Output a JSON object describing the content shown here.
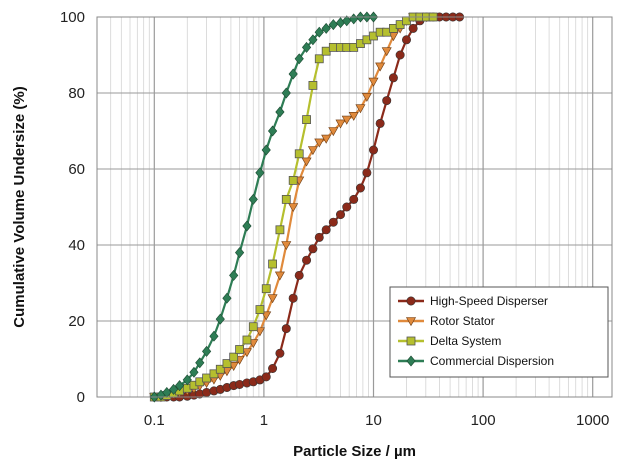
{
  "chart_data": {
    "type": "line",
    "xlabel": "Particle Size / µm",
    "ylabel": "Cumulative Volume Undersize (%)",
    "xscale": "log",
    "xlim": [
      0.03,
      1500
    ],
    "ylim": [
      0,
      100
    ],
    "xticks": [
      "0.1",
      "1",
      "10",
      "100",
      "1000"
    ],
    "yticks": [
      "0",
      "20",
      "40",
      "60",
      "80",
      "100"
    ],
    "grid": true,
    "legend_position": "bottom-right",
    "series": [
      {
        "name": "High-Speed Disperser",
        "color": "#8b2a1a",
        "marker": "circle",
        "x": [
          0.1,
          0.115,
          0.13,
          0.15,
          0.17,
          0.2,
          0.23,
          0.26,
          0.3,
          0.35,
          0.4,
          0.46,
          0.53,
          0.6,
          0.7,
          0.8,
          0.92,
          1.05,
          1.2,
          1.4,
          1.6,
          1.85,
          2.1,
          2.45,
          2.8,
          3.2,
          3.7,
          4.3,
          5,
          5.7,
          6.6,
          7.6,
          8.7,
          10,
          11.5,
          13.2,
          15.2,
          17.5,
          20,
          23,
          26.5,
          30.5,
          35,
          40,
          46,
          53,
          61
        ],
        "y": [
          0,
          0,
          0,
          0,
          0,
          0.2,
          0.5,
          0.8,
          1.2,
          1.6,
          2,
          2.5,
          3,
          3.3,
          3.7,
          4,
          4.5,
          5.3,
          7.5,
          11.5,
          18,
          26,
          32,
          36,
          39,
          42,
          44,
          46,
          48,
          50,
          52,
          55,
          59,
          65,
          72,
          78,
          84,
          90,
          94,
          97,
          99,
          100,
          100,
          100,
          100,
          100,
          100
        ]
      },
      {
        "name": "Rotor Stator",
        "color": "#e08a3c",
        "marker": "triangle-down",
        "x": [
          0.1,
          0.115,
          0.13,
          0.15,
          0.17,
          0.2,
          0.23,
          0.26,
          0.3,
          0.35,
          0.4,
          0.46,
          0.53,
          0.6,
          0.7,
          0.8,
          0.92,
          1.05,
          1.2,
          1.4,
          1.6,
          1.85,
          2.1,
          2.45,
          2.8,
          3.2,
          3.7,
          4.3,
          5,
          5.7,
          6.6,
          7.6,
          8.7,
          10,
          11.5,
          13.2,
          15.2,
          17.5,
          20,
          23,
          26.5,
          30.5
        ],
        "y": [
          0,
          0,
          0.3,
          0.7,
          1.1,
          1.6,
          2.2,
          2.9,
          3.7,
          4.6,
          5.6,
          6.8,
          8.2,
          9.8,
          11.8,
          14.2,
          17.3,
          21.5,
          26,
          32,
          40,
          50,
          57,
          62,
          65,
          67,
          68,
          70,
          72,
          73,
          74,
          76,
          79,
          83,
          87,
          91,
          95,
          97,
          99,
          100,
          100,
          100
        ]
      },
      {
        "name": "Delta System",
        "color": "#b5bf2e",
        "marker": "square",
        "x": [
          0.1,
          0.115,
          0.13,
          0.15,
          0.17,
          0.2,
          0.23,
          0.26,
          0.3,
          0.35,
          0.4,
          0.46,
          0.53,
          0.6,
          0.7,
          0.8,
          0.92,
          1.05,
          1.2,
          1.4,
          1.6,
          1.85,
          2.1,
          2.45,
          2.8,
          3.2,
          3.7,
          4.3,
          5,
          5.7,
          6.6,
          7.6,
          8.7,
          10,
          11.5,
          13.2,
          15.2,
          17.5,
          20,
          23,
          26.5,
          30.5,
          35
        ],
        "y": [
          0,
          0,
          0.4,
          1,
          1.6,
          2.3,
          3.1,
          4,
          5,
          6.1,
          7.3,
          8.8,
          10.5,
          12.5,
          15,
          18.5,
          23,
          28.5,
          35,
          44,
          52,
          57,
          64,
          73,
          82,
          89,
          91,
          92,
          92,
          92,
          92,
          93,
          94,
          95,
          96,
          96,
          97,
          98,
          99,
          100,
          100,
          100,
          100
        ]
      },
      {
        "name": "Commercial Dispersion",
        "color": "#2e7d55",
        "marker": "diamond",
        "x": [
          0.1,
          0.115,
          0.13,
          0.15,
          0.17,
          0.2,
          0.23,
          0.26,
          0.3,
          0.35,
          0.4,
          0.46,
          0.53,
          0.6,
          0.7,
          0.8,
          0.92,
          1.05,
          1.2,
          1.4,
          1.6,
          1.85,
          2.1,
          2.45,
          2.8,
          3.2,
          3.7,
          4.3,
          5,
          5.7,
          6.6,
          7.6,
          8.7,
          10
        ],
        "y": [
          0,
          0.5,
          1.2,
          2,
          3,
          4.5,
          6.5,
          9,
          12,
          16,
          20.5,
          26,
          32,
          38,
          45,
          52,
          59,
          65,
          70,
          75,
          80,
          85,
          89,
          92,
          94,
          96,
          97,
          98,
          98.5,
          99,
          99.5,
          100,
          100,
          100
        ]
      }
    ]
  }
}
